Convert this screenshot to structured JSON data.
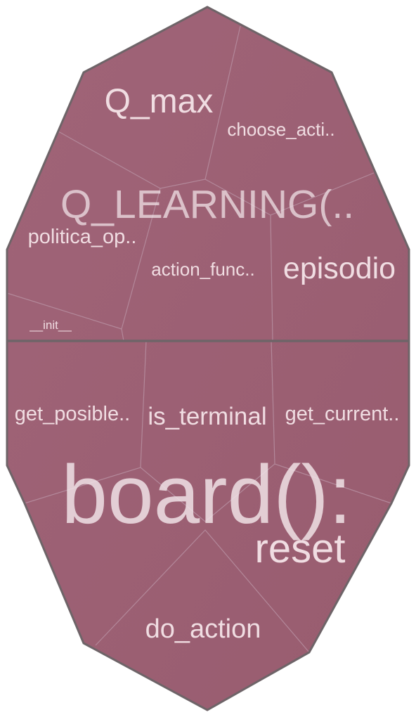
{
  "diagram": {
    "colors": {
      "cell_fill": "#9c6073",
      "cell_border": "#b58a98",
      "outline": "#6e6468",
      "label": "#f0dde2"
    },
    "groups": {
      "q_learning": {
        "label": "Q_LEARNING(.."
      },
      "board": {
        "label": "board():"
      }
    },
    "cells": {
      "q_max": "Q_max",
      "choose_action": "choose_acti..",
      "politica_optima": "politica_op..",
      "action_function": "action_func..",
      "episodio": "episodio",
      "init": "__init__",
      "get_posible": "get_posible..",
      "is_terminal": "is_terminal",
      "get_current": "get_current..",
      "reset": "reset",
      "do_action": "do_action"
    }
  }
}
